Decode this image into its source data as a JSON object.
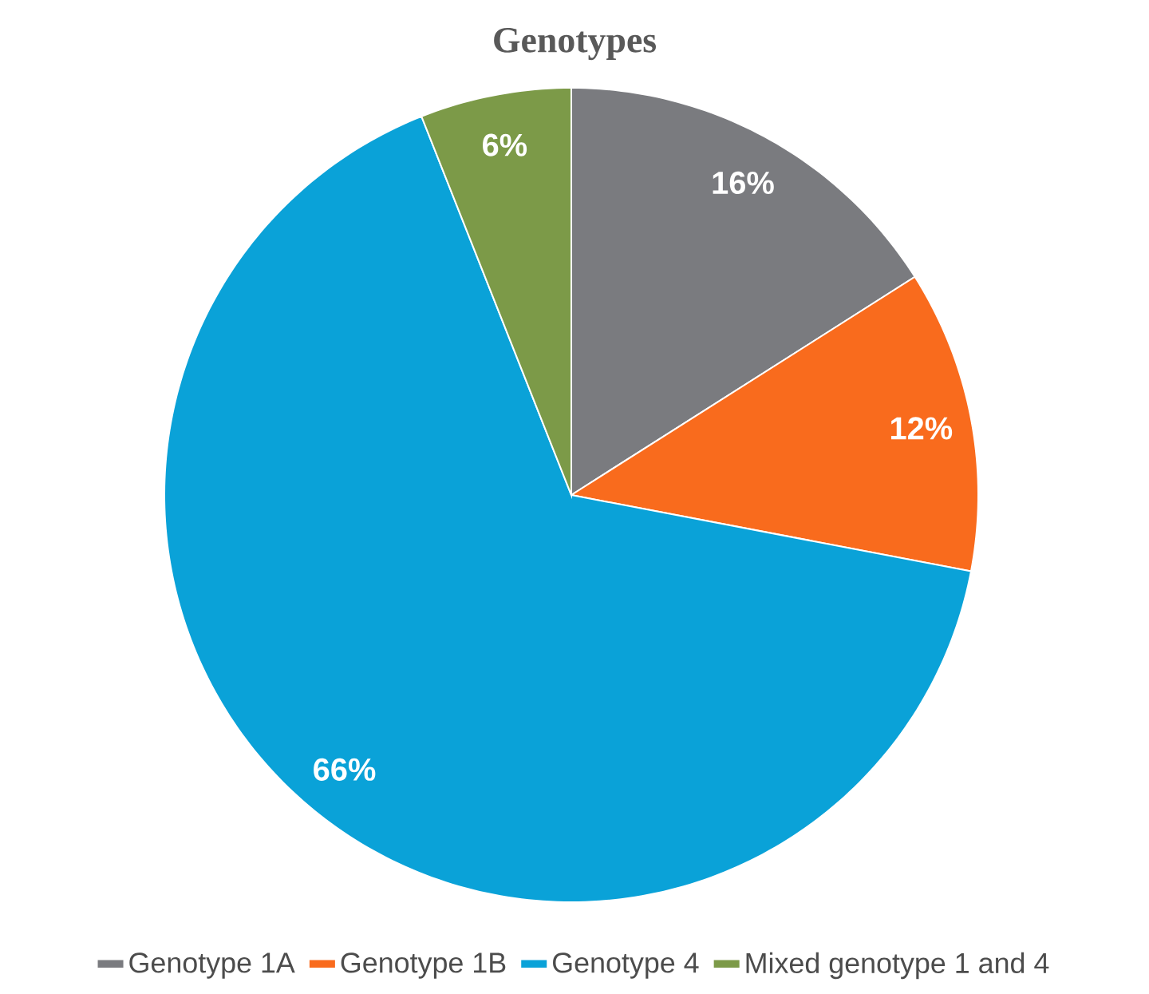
{
  "chart_data": {
    "type": "pie",
    "title": "Genotypes",
    "categories": [
      "Genotype 1A",
      "Genotype 1B",
      "Genotype 4",
      "Mixed genotype 1 and 4"
    ],
    "values": [
      16,
      12,
      66,
      6
    ],
    "colors": [
      "#7a7b7f",
      "#f96b1d",
      "#0aa2d8",
      "#7c9a48"
    ],
    "value_labels": [
      "16%",
      "12%",
      "66%",
      "6%"
    ],
    "legend": "bottom"
  }
}
